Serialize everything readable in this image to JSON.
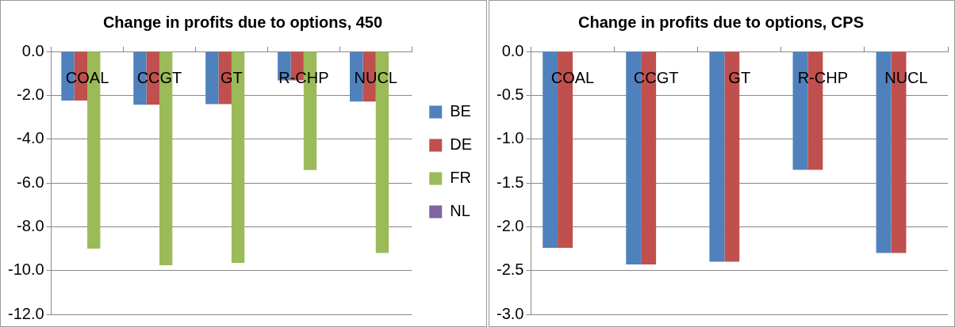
{
  "chart_data": [
    {
      "type": "bar",
      "title": "Change in profits due to options, 450",
      "categories": [
        "COAL",
        "CCGT",
        "GT",
        "R-CHP",
        "NUCL"
      ],
      "series": [
        {
          "name": "BE",
          "color": "#4f81bd",
          "values": [
            -2.24,
            -2.43,
            -2.4,
            -1.32,
            -2.29
          ]
        },
        {
          "name": "DE",
          "color": "#c0504d",
          "values": [
            -2.24,
            -2.43,
            -2.4,
            -1.32,
            -2.29
          ]
        },
        {
          "name": "FR",
          "color": "#9bbb59",
          "values": [
            -9.0,
            -9.76,
            -9.65,
            -5.41,
            -9.2
          ]
        },
        {
          "name": "NL",
          "color": "#8064a2",
          "values": [
            0,
            0,
            0,
            0,
            0
          ]
        }
      ],
      "ylim": [
        -12,
        0
      ],
      "yticks": [
        {
          "value": -12,
          "label": "-12.0"
        },
        {
          "value": -10,
          "label": "-10.0"
        },
        {
          "value": -8,
          "label": "-8.0"
        },
        {
          "value": -6,
          "label": "-6.0"
        },
        {
          "value": -4,
          "label": "-4.0"
        },
        {
          "value": -2,
          "label": "-2.0"
        },
        {
          "value": 0,
          "label": "0.0"
        }
      ],
      "grid": "y",
      "legend": "right"
    },
    {
      "type": "bar",
      "title": "Change in profits due to options, CPS",
      "categories": [
        "COAL",
        "CCGT",
        "GT",
        "R-CHP",
        "NUCL"
      ],
      "series": [
        {
          "color": "#4f81bd",
          "values": [
            -2.24,
            -2.43,
            -2.4,
            -1.35,
            -2.3
          ]
        },
        {
          "color": "#c0504d",
          "values": [
            -2.24,
            -2.43,
            -2.4,
            -1.35,
            -2.3
          ]
        },
        {
          "color": "#9bbb59",
          "values": [
            0,
            0,
            0,
            0,
            0
          ]
        },
        {
          "color": "#8064a2",
          "values": [
            0,
            0,
            0,
            0,
            0
          ]
        }
      ],
      "ylim": [
        -3,
        0
      ],
      "yticks": [
        {
          "value": -3,
          "label": "-3.0"
        },
        {
          "value": -2.5,
          "label": "-2.5"
        },
        {
          "value": -2,
          "label": "-2.0"
        },
        {
          "value": -1.5,
          "label": "-1.5"
        },
        {
          "value": -1,
          "label": "-1.0"
        },
        {
          "value": -0.5,
          "label": "-0.5"
        },
        {
          "value": 0,
          "label": "0.0"
        }
      ],
      "grid": "y"
    }
  ]
}
